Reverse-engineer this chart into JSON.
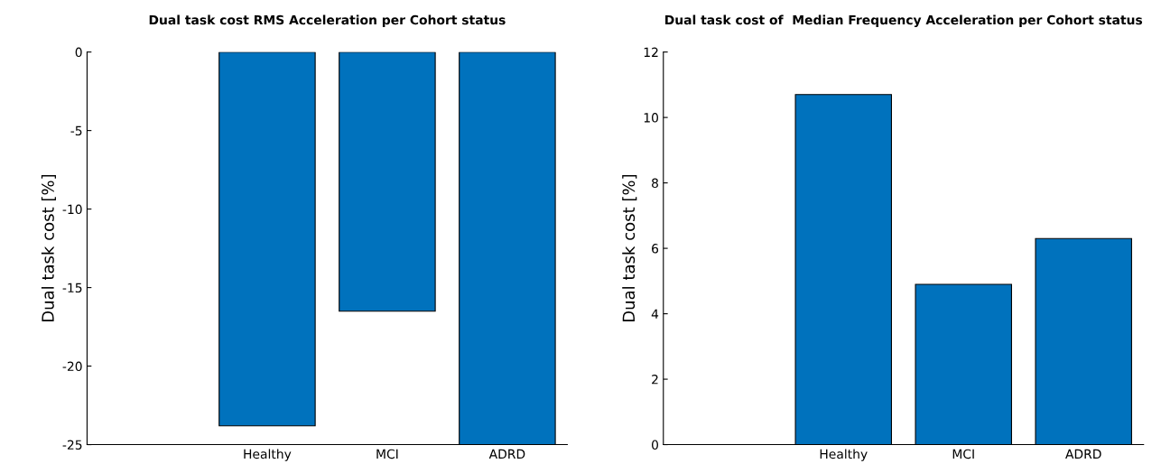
{
  "chart_data": [
    {
      "type": "bar",
      "title": "Dual task cost RMS Acceleration per Cohort status",
      "ylabel": "Dual task cost [%]",
      "categories": [
        null,
        "Healthy",
        "MCI",
        "ADRD"
      ],
      "values": [
        null,
        -23.8,
        -16.5,
        -25
      ],
      "color": "#0072bd",
      "ylim": [
        -25,
        0
      ],
      "yticks": [
        -25,
        -20,
        -15,
        -10,
        -5,
        0
      ],
      "grid": false
    },
    {
      "type": "bar",
      "title": "Dual task cost of  Median Frequency Acceleration per Cohort status",
      "ylabel": "Dual task cost [%]",
      "categories": [
        null,
        "Healthy",
        "MCI",
        "ADRD"
      ],
      "values": [
        null,
        10.7,
        4.9,
        6.3
      ],
      "color": "#0072bd",
      "ylim": [
        0,
        12
      ],
      "yticks": [
        0,
        2,
        4,
        6,
        8,
        10,
        12
      ],
      "grid": false
    }
  ]
}
